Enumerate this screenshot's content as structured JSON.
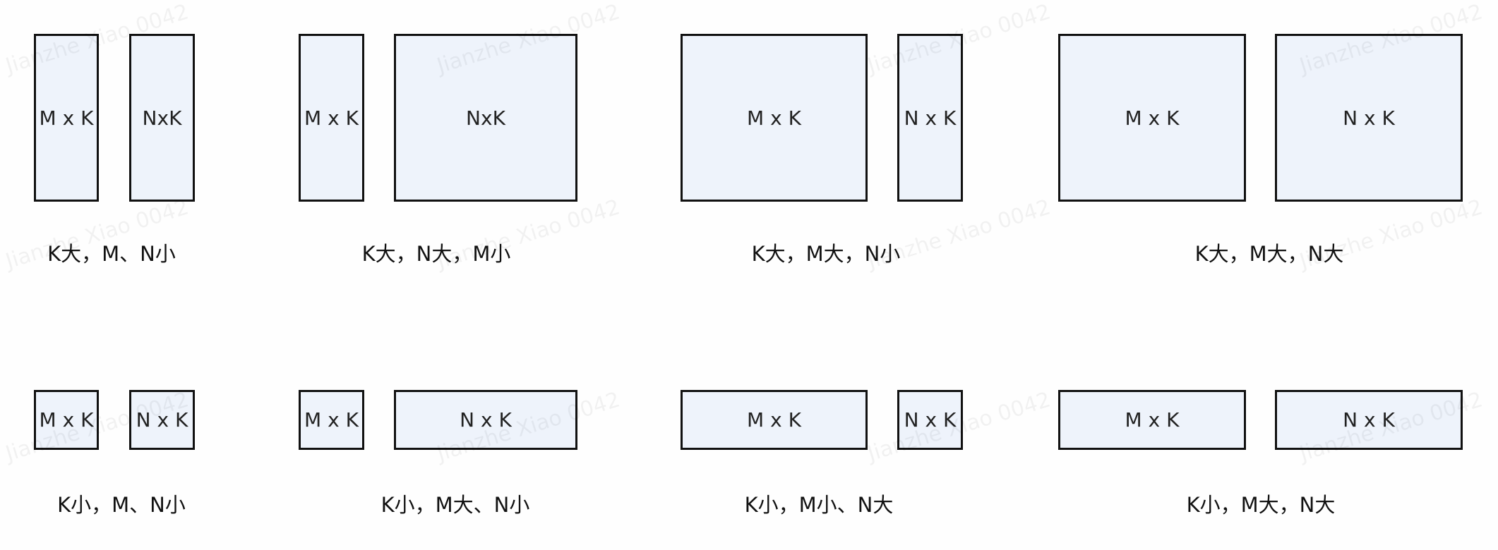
{
  "colors": {
    "matrix_fill": "#eef3fb",
    "matrix_border": "#111111",
    "background": "#fefefe"
  },
  "watermark": "Jianzhe Xiao 0042",
  "rows": [
    {
      "cases": [
        {
          "left": "M x K",
          "right": "NxK",
          "caption": "K大，M、N小"
        },
        {
          "left": "M x K",
          "right": "NxK",
          "caption": "K大，N大，M小"
        },
        {
          "left": "M x K",
          "right": "N x K",
          "caption": "K大，M大，N小"
        },
        {
          "left": "M x K",
          "right": "N x K",
          "caption": "K大，M大，N大"
        }
      ]
    },
    {
      "cases": [
        {
          "left": "M x K",
          "right": "N x K",
          "caption": "K小，M、N小"
        },
        {
          "left": "M x K",
          "right": "N x K",
          "caption": "K小，M大、N小"
        },
        {
          "left": "M x K",
          "right": "N x K",
          "caption": "K小，M小、N大"
        },
        {
          "left": "M x K",
          "right": "N x K",
          "caption": "K小，M大，N大"
        }
      ]
    }
  ]
}
